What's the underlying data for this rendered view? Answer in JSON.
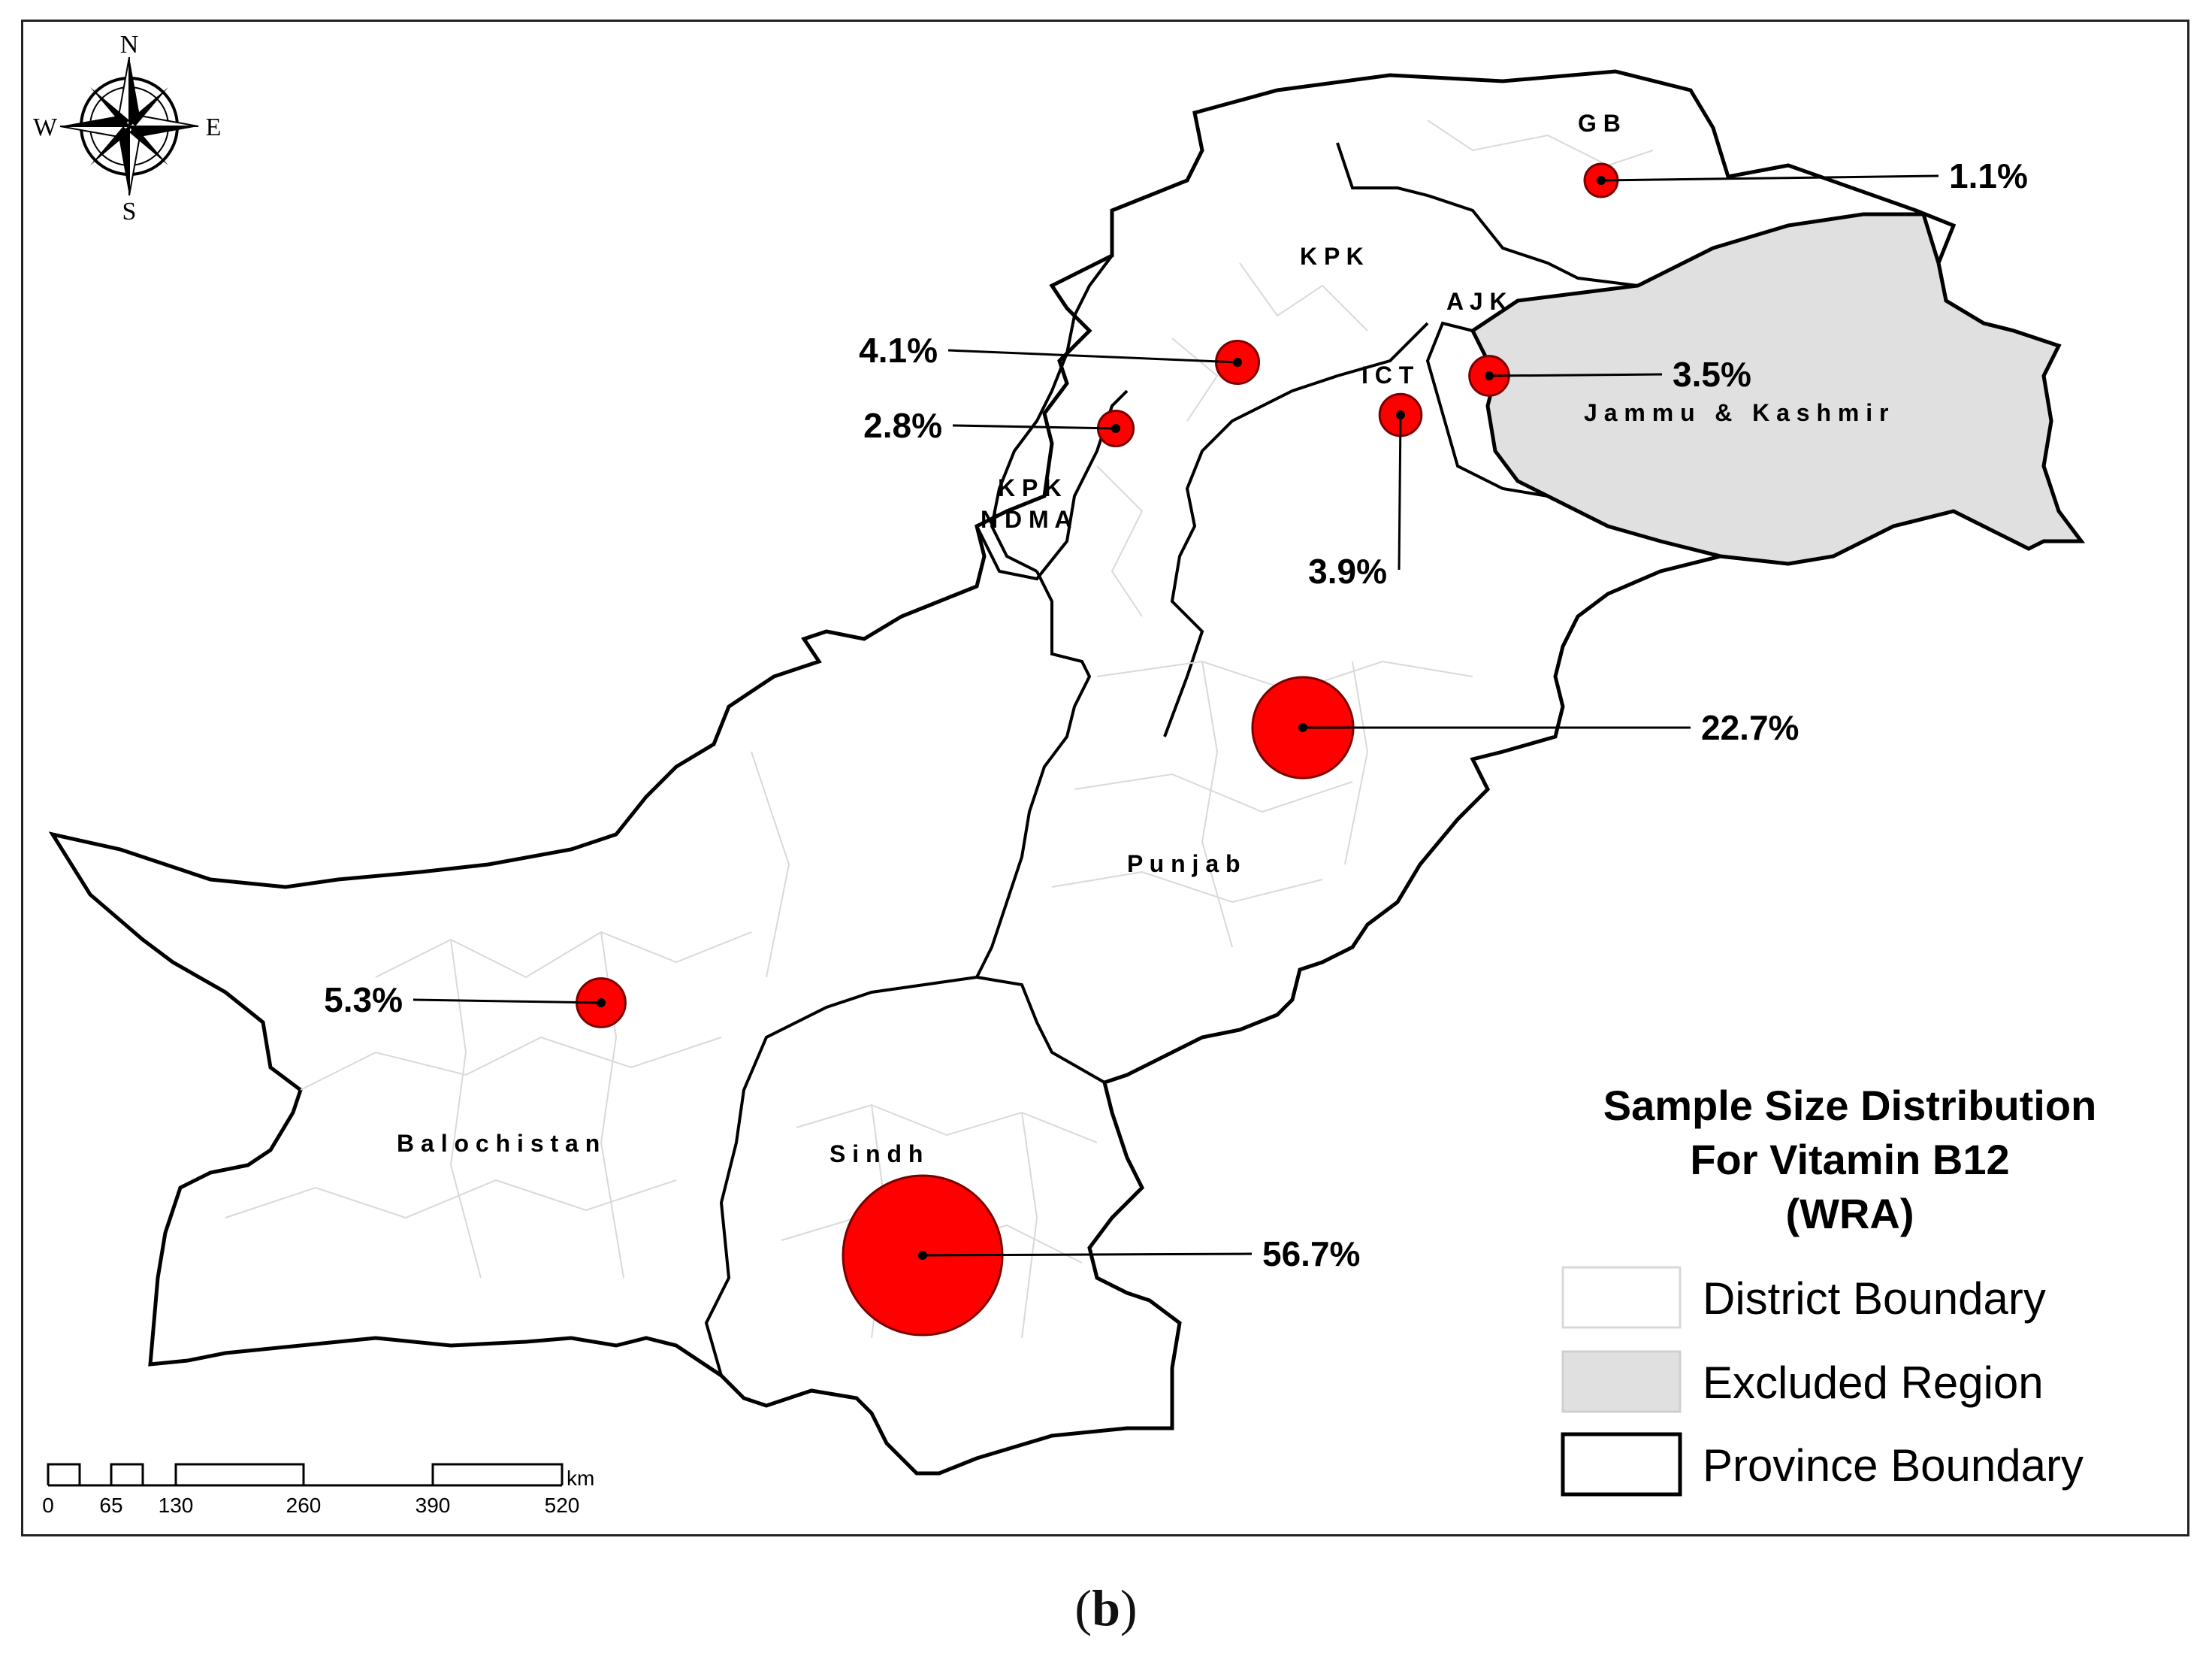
{
  "legend": {
    "title_lines": [
      "Sample Size Distribution",
      "For Vitamin B12",
      "(WRA)"
    ],
    "items": [
      {
        "label": "District Boundary",
        "fill": "#ffffff",
        "stroke": "#d8d8d8"
      },
      {
        "label": "Excluded Region",
        "fill": "#e0e0e0",
        "stroke": "#d0d0d0"
      },
      {
        "label": "Province Boundary",
        "fill": "#ffffff",
        "stroke": "#000000"
      }
    ]
  },
  "compass": {
    "n": "N",
    "s": "S",
    "e": "E",
    "w": "W"
  },
  "scale_bar": {
    "unit": "km",
    "ticks": [
      "0",
      "65",
      "130",
      "260",
      "390",
      "520"
    ]
  },
  "regions": {
    "gb": "G B",
    "kpk": "K P K",
    "ajk": "A J K",
    "ict": "I C T",
    "jk": "J a m m u   &   K a s h m i r",
    "kpk_ndma_1": "K P K",
    "kpk_ndma_2": "N D M A",
    "punjab": "P u n j a b",
    "balochistan": "B a l o c h i s t a n",
    "sindh": "S i n d h"
  },
  "samples": [
    {
      "region": "GB",
      "label": "1.1%",
      "percent": 1.1
    },
    {
      "region": "KPK",
      "label": "4.1%",
      "percent": 4.1
    },
    {
      "region": "KPK NDMA",
      "label": "2.8%",
      "percent": 2.8
    },
    {
      "region": "AJK",
      "label": "3.5%",
      "percent": 3.5
    },
    {
      "region": "ICT",
      "label": "3.9%",
      "percent": 3.9
    },
    {
      "region": "Punjab",
      "label": "22.7%",
      "percent": 22.7
    },
    {
      "region": "Balochistan",
      "label": "5.3%",
      "percent": 5.3
    },
    {
      "region": "Sindh",
      "label": "56.7%",
      "percent": 56.7
    }
  ],
  "caption": "b",
  "colors": {
    "bubble": "#ff0000",
    "bubble_stroke": "#7a0000",
    "province": "#000000",
    "district": "#d9d9d9",
    "excluded": "#e0e0e0"
  }
}
